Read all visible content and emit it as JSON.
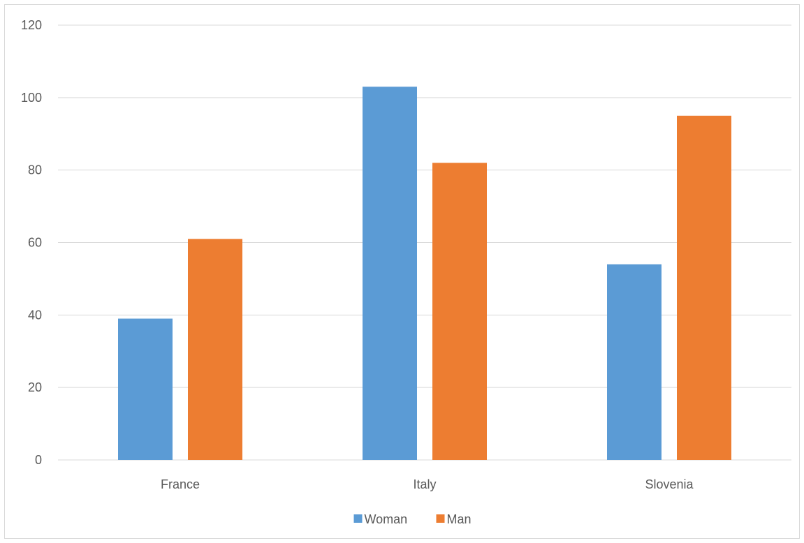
{
  "chart_data": {
    "type": "bar",
    "categories": [
      "France",
      "Italy",
      "Slovenia"
    ],
    "series": [
      {
        "name": "Woman",
        "values": [
          39,
          103,
          54
        ],
        "color": "#5b9bd5"
      },
      {
        "name": "Man",
        "values": [
          61,
          82,
          95
        ],
        "color": "#ed7d31"
      }
    ],
    "yticks": [
      "0",
      "20",
      "40",
      "60",
      "80",
      "100",
      "120"
    ],
    "ylim": [
      0,
      120
    ],
    "grid": true,
    "legend_position": "bottom",
    "gridline_color": "#d9d9d9"
  }
}
